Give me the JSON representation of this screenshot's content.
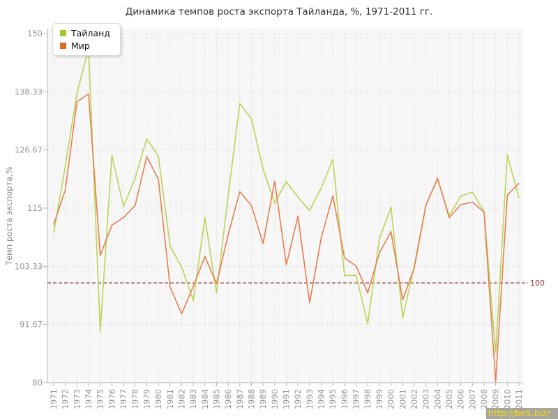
{
  "title": "Динамика темпов роста экспорта Тайланда, %, 1971-2011 гг.",
  "watermark": "http://be5.biz/",
  "legend": {
    "items": [
      {
        "label": "Тайланд",
        "color": "#a4c832"
      },
      {
        "label": "Мир",
        "color": "#dd6b28"
      }
    ]
  },
  "chart_data": {
    "type": "line",
    "title": "Динамика темпов роста экспорта Тайланда, %, 1971-2011 гг.",
    "xlabel": "",
    "ylabel": "Темп роста экспорта,%",
    "ylim": [
      80,
      150
    ],
    "grid": true,
    "legend_position": "top-left",
    "yticks": [
      {
        "value": 80,
        "label": "80"
      },
      {
        "value": 91.67,
        "label": "91.67"
      },
      {
        "value": 103.33,
        "label": "103.33"
      },
      {
        "value": 115,
        "label": "115"
      },
      {
        "value": 126.67,
        "label": "126.67"
      },
      {
        "value": 138.33,
        "label": "138.33"
      },
      {
        "value": 150,
        "label": "150"
      }
    ],
    "x": [
      1971,
      1972,
      1973,
      1974,
      1975,
      1976,
      1977,
      1978,
      1979,
      1980,
      1981,
      1982,
      1983,
      1984,
      1985,
      1986,
      1987,
      1988,
      1989,
      1990,
      1991,
      1992,
      1993,
      1994,
      1995,
      1996,
      1997,
      1998,
      1999,
      2000,
      2001,
      2002,
      2003,
      2004,
      2005,
      2006,
      2007,
      2008,
      2009,
      2010,
      2011
    ],
    "series": [
      {
        "name": "Тайланд",
        "color": "#b8d455",
        "values": [
          110,
          123.5,
          138,
          147,
          90.2,
          125.6,
          115.3,
          121,
          128.9,
          125.4,
          107.4,
          103.2,
          96.5,
          113.1,
          98,
          117.5,
          136,
          132.9,
          122.8,
          116,
          120.3,
          117.2,
          114.5,
          119,
          124.8,
          101.5,
          101.5,
          91.8,
          108.8,
          115.2,
          93,
          103.4,
          115.7,
          120.8,
          113.5,
          117.4,
          118.2,
          114.3,
          86,
          125.7,
          117
        ]
      },
      {
        "name": "Мир",
        "color": "#e87d4d",
        "values": [
          111.7,
          118.7,
          136.3,
          137.9,
          105.5,
          111.6,
          113.1,
          115.5,
          125.3,
          120.8,
          99.2,
          93.8,
          99.3,
          105.3,
          99.8,
          109.7,
          118.3,
          115.5,
          107.9,
          120.4,
          103.6,
          113.4,
          96,
          109,
          117.5,
          105,
          103.4,
          98,
          106,
          110.3,
          96.6,
          103,
          115.5,
          121,
          113.1,
          115.7,
          116.2,
          114.2,
          80.2,
          117.6,
          120
        ]
      }
    ],
    "reference_line": {
      "value": 100,
      "label": "100",
      "color": "#993333"
    },
    "colors": {
      "plot_background": "#f7f7f7",
      "gridline": "#e2e2e2",
      "axis": "#b3b3b3",
      "tick_text": "#979797"
    }
  }
}
